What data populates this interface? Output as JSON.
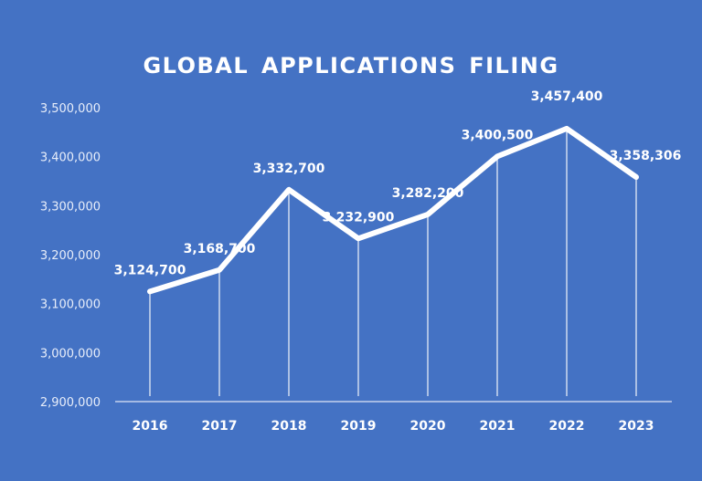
{
  "chart_data": {
    "type": "line",
    "title": "GLOBAL APPLICATIONS FILING",
    "xlabel": "",
    "ylabel": "",
    "x": [
      "2016",
      "2017",
      "2018",
      "2019",
      "2020",
      "2021",
      "2022",
      "2023"
    ],
    "series": [
      {
        "values": [
          3124700,
          3168700,
          3332700,
          3232900,
          3282200,
          3400500,
          3457400,
          3358306
        ],
        "color": "#ffffff"
      }
    ],
    "data_labels": [
      "3,124,700",
      "3,168,700",
      "3,332,700",
      "3,232,900",
      "3,282,200",
      "3,400,500",
      "3,457,400",
      "3,358,306"
    ],
    "ylim": [
      2900000,
      3500000
    ],
    "yticks": [
      "2,900,000",
      "3,000,000",
      "3,100,000",
      "3,200,000",
      "3,300,000",
      "3,400,000",
      "3,500,000"
    ],
    "ytick_values": [
      2900000,
      3000000,
      3100000,
      3200000,
      3300000,
      3400000,
      3500000
    ],
    "grid": false,
    "drop_lines": true,
    "background": "#4472c4",
    "legend": "none"
  }
}
